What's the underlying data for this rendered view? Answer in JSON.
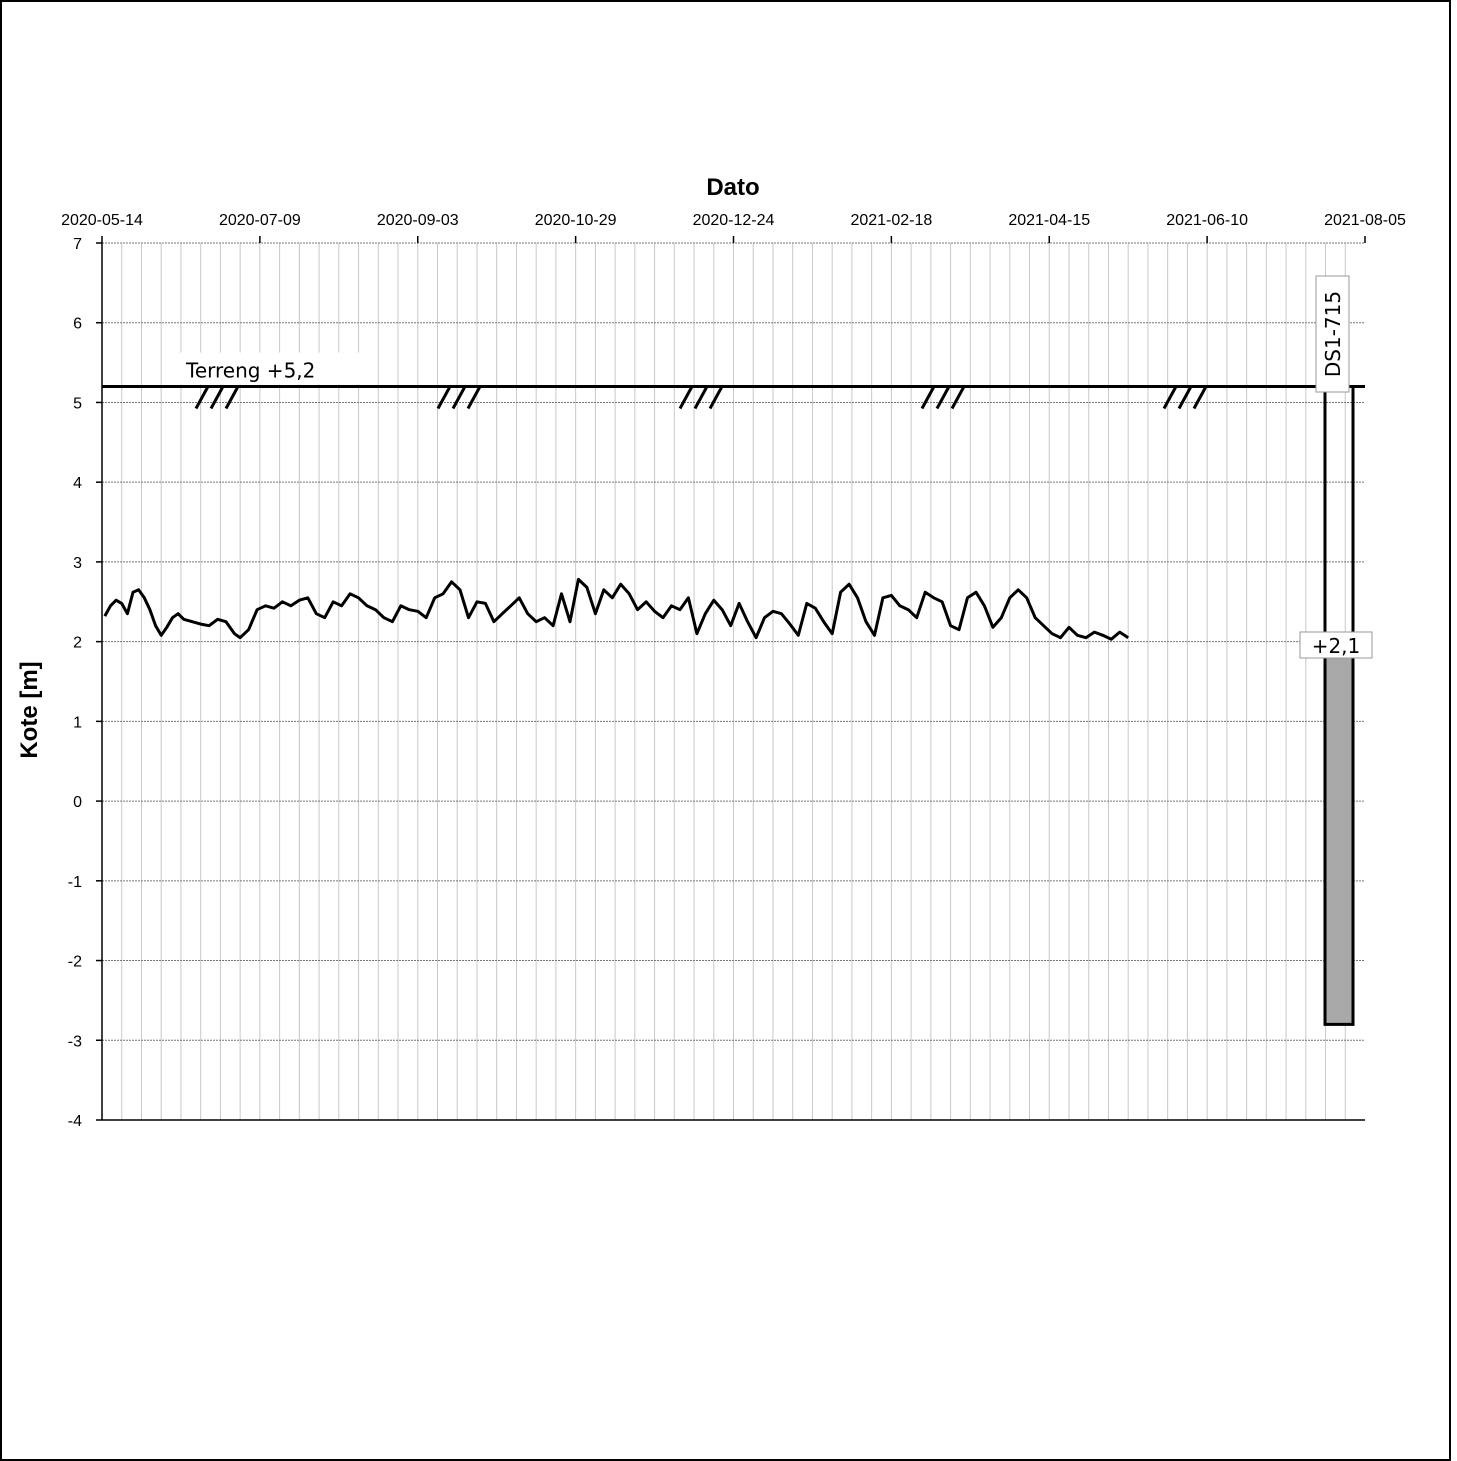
{
  "chart_data": {
    "type": "line",
    "title": "",
    "xlabel": "Dato",
    "ylabel": "Kote [m]",
    "xlim": [
      "2020-05-14",
      "2021-08-05"
    ],
    "ylim": [
      -4,
      7
    ],
    "x_ticks": [
      "2020-05-14",
      "2020-07-09",
      "2020-09-03",
      "2020-10-29",
      "2020-12-24",
      "2021-02-18",
      "2021-04-15",
      "2021-06-10",
      "2021-08-05"
    ],
    "y_ticks": [
      "-4",
      "-3",
      "-2",
      "-1",
      "0",
      "1",
      "2",
      "3",
      "4",
      "5",
      "6",
      "7"
    ],
    "x_minor_interval_days": 7,
    "grid": true,
    "legend": "none",
    "terrain": {
      "level": 5.2,
      "label": "Terreng +5,2",
      "hatch_marks": "///"
    },
    "well": {
      "name": "DS1-715",
      "top": 5.2,
      "bottom": -2.8,
      "water_level": 2.1,
      "water_label": "+2,1",
      "fill_color": "#a8a8a8"
    },
    "series": [
      {
        "color": "#000000",
        "x": [
          "2020-05-15",
          "2020-05-17",
          "2020-05-19",
          "2020-05-21",
          "2020-05-23",
          "2020-05-25",
          "2020-05-27",
          "2020-05-29",
          "2020-05-31",
          "2020-06-02",
          "2020-06-04",
          "2020-06-06",
          "2020-06-08",
          "2020-06-10",
          "2020-06-12",
          "2020-06-15",
          "2020-06-18",
          "2020-06-21",
          "2020-06-24",
          "2020-06-27",
          "2020-06-30",
          "2020-07-02",
          "2020-07-05",
          "2020-07-08",
          "2020-07-11",
          "2020-07-14",
          "2020-07-17",
          "2020-07-20",
          "2020-07-23",
          "2020-07-26",
          "2020-07-29",
          "2020-08-01",
          "2020-08-04",
          "2020-08-07",
          "2020-08-10",
          "2020-08-13",
          "2020-08-16",
          "2020-08-19",
          "2020-08-22",
          "2020-08-25",
          "2020-08-28",
          "2020-08-31",
          "2020-09-03",
          "2020-09-06",
          "2020-09-09",
          "2020-09-12",
          "2020-09-15",
          "2020-09-18",
          "2020-09-21",
          "2020-09-24",
          "2020-09-27",
          "2020-09-30",
          "2020-10-03",
          "2020-10-06",
          "2020-10-09",
          "2020-10-12",
          "2020-10-15",
          "2020-10-18",
          "2020-10-21",
          "2020-10-24",
          "2020-10-27",
          "2020-10-30",
          "2020-11-02",
          "2020-11-05",
          "2020-11-08",
          "2020-11-11",
          "2020-11-14",
          "2020-11-17",
          "2020-11-20",
          "2020-11-23",
          "2020-11-26",
          "2020-11-29",
          "2020-12-02",
          "2020-12-05",
          "2020-12-08",
          "2020-12-11",
          "2020-12-14",
          "2020-12-17",
          "2020-12-20",
          "2020-12-23",
          "2020-12-26",
          "2020-12-29",
          "2021-01-01",
          "2021-01-04",
          "2021-01-07",
          "2021-01-10",
          "2021-01-13",
          "2021-01-16",
          "2021-01-19",
          "2021-01-22",
          "2021-01-25",
          "2021-01-28",
          "2021-01-31",
          "2021-02-03",
          "2021-02-06",
          "2021-02-09",
          "2021-02-12",
          "2021-02-15",
          "2021-02-18",
          "2021-02-21",
          "2021-02-24",
          "2021-02-27",
          "2021-03-02",
          "2021-03-05",
          "2021-03-08",
          "2021-03-11",
          "2021-03-14",
          "2021-03-17",
          "2021-03-20",
          "2021-03-23",
          "2021-03-26",
          "2021-03-29",
          "2021-04-01",
          "2021-04-04",
          "2021-04-07",
          "2021-04-10",
          "2021-04-13",
          "2021-04-16",
          "2021-04-19",
          "2021-04-22",
          "2021-04-25",
          "2021-04-28",
          "2021-05-01",
          "2021-05-04",
          "2021-05-07",
          "2021-05-10",
          "2021-05-13"
        ],
        "y": [
          2.32,
          2.45,
          2.52,
          2.48,
          2.35,
          2.62,
          2.65,
          2.55,
          2.4,
          2.2,
          2.08,
          2.18,
          2.3,
          2.35,
          2.28,
          2.25,
          2.22,
          2.2,
          2.28,
          2.25,
          2.1,
          2.05,
          2.15,
          2.4,
          2.45,
          2.42,
          2.5,
          2.45,
          2.52,
          2.55,
          2.35,
          2.3,
          2.5,
          2.45,
          2.6,
          2.55,
          2.45,
          2.4,
          2.3,
          2.25,
          2.45,
          2.4,
          2.38,
          2.3,
          2.55,
          2.6,
          2.75,
          2.65,
          2.3,
          2.5,
          2.48,
          2.25,
          2.35,
          2.45,
          2.55,
          2.35,
          2.25,
          2.3,
          2.2,
          2.6,
          2.25,
          2.78,
          2.68,
          2.35,
          2.65,
          2.55,
          2.72,
          2.6,
          2.4,
          2.5,
          2.38,
          2.3,
          2.45,
          2.4,
          2.55,
          2.1,
          2.35,
          2.52,
          2.4,
          2.2,
          2.48,
          2.25,
          2.05,
          2.3,
          2.38,
          2.35,
          2.22,
          2.08,
          2.48,
          2.42,
          2.25,
          2.1,
          2.62,
          2.72,
          2.55,
          2.25,
          2.08,
          2.55,
          2.58,
          2.45,
          2.4,
          2.3,
          2.62,
          2.55,
          2.5,
          2.2,
          2.15,
          2.55,
          2.62,
          2.45,
          2.18,
          2.3,
          2.55,
          2.65,
          2.55,
          2.3,
          2.2,
          2.1,
          2.05,
          2.18,
          2.08,
          2.05,
          2.12,
          2.08,
          2.03,
          2.12,
          2.05
        ]
      }
    ]
  }
}
